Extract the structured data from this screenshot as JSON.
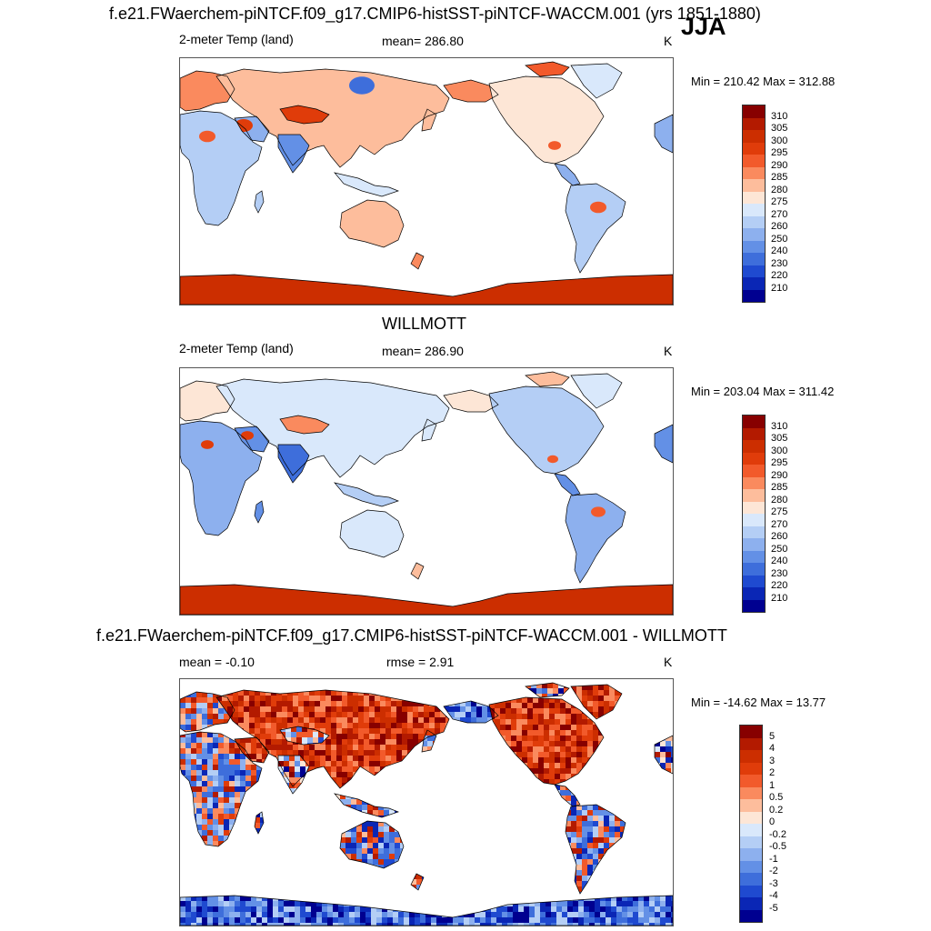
{
  "season": "JJA",
  "panels": [
    {
      "heading": "f.e21.FWaerchem-piNTCF.f09_g17.CMIP6-histSST-piNTCF-WACCM.001 (yrs 1851-1880)",
      "left_label": "2-meter Temp (land)",
      "center_label": "mean= 286.80",
      "units": "K",
      "minmax": "Min = 210.42 Max = 312.88",
      "colorbar_labels": [
        "310",
        "305",
        "300",
        "295",
        "290",
        "285",
        "280",
        "275",
        "270",
        "260",
        "250",
        "240",
        "230",
        "220",
        "210"
      ]
    },
    {
      "heading": "WILLMOTT",
      "left_label": "2-meter Temp (land)",
      "center_label": "mean= 286.90",
      "units": "K",
      "minmax": "Min = 203.04 Max = 311.42",
      "colorbar_labels": [
        "310",
        "305",
        "300",
        "295",
        "290",
        "285",
        "280",
        "275",
        "270",
        "260",
        "250",
        "240",
        "230",
        "220",
        "210"
      ]
    },
    {
      "heading": "f.e21.FWaerchem-piNTCF.f09_g17.CMIP6-histSST-piNTCF-WACCM.001 - WILLMOTT",
      "left_label": "mean =  -0.10",
      "center_label": "rmse =   2.91",
      "units": "K",
      "minmax": "Min = -14.62 Max =  13.77",
      "colorbar_labels": [
        "5",
        "4",
        "3",
        "2",
        "1",
        "0.5",
        "0.2",
        "0",
        "-0.2",
        "-0.5",
        "-1",
        "-2",
        "-3",
        "-4",
        "-5"
      ]
    }
  ],
  "colors": {
    "temperature_scale": [
      "#870000",
      "#b31a00",
      "#cc2e00",
      "#e03c0a",
      "#f25a2b",
      "#fa8a5e",
      "#fdbd9c",
      "#fde6d6",
      "#d9e8fb",
      "#b4cef5",
      "#8db0ee",
      "#6390e6",
      "#3e6edb",
      "#1f4ad0",
      "#0a26b5",
      "#000090"
    ],
    "difference_scale": [
      "#870000",
      "#b31a00",
      "#cc2e00",
      "#e03c0a",
      "#f25a2b",
      "#fa8a5e",
      "#fdbd9c",
      "#fde6d6",
      "#d9e8fb",
      "#b4cef5",
      "#8db0ee",
      "#6390e6",
      "#3e6edb",
      "#1f4ad0",
      "#0a26b5",
      "#000090"
    ],
    "coastline": "#000000",
    "ocean": "#ffffff"
  }
}
